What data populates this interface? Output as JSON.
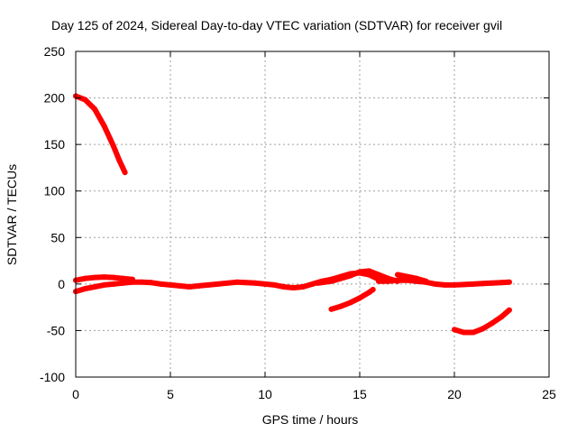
{
  "chart_data": {
    "type": "line",
    "title": "Day 125 of 2024, Sidereal Day-to-day VTEC variation (SDTVAR) for receiver gvil",
    "xlabel": "GPS time / hours",
    "ylabel": "SDTVAR / TECUs",
    "xlim": [
      0,
      25
    ],
    "ylim": [
      -100,
      250
    ],
    "xticks": [
      0,
      5,
      10,
      15,
      20,
      25
    ],
    "yticks": [
      -100,
      -50,
      0,
      50,
      100,
      150,
      200,
      250
    ],
    "grid": true,
    "color": "#ff0000",
    "series": [
      {
        "x": [
          0.0,
          0.5,
          1.0,
          1.5,
          2.0,
          2.3,
          2.6
        ],
        "y": [
          202,
          198,
          188,
          170,
          148,
          133,
          120
        ]
      },
      {
        "x": [
          0.0,
          0.5,
          1.0,
          1.5,
          2.0,
          2.5,
          3.0
        ],
        "y": [
          4,
          6,
          7,
          7.5,
          7,
          6,
          5
        ]
      },
      {
        "x": [
          0.0,
          0.5,
          1.0,
          1.5,
          2.0,
          2.5,
          3.0,
          3.5,
          4.0,
          4.5,
          5.0,
          5.5,
          6.0,
          6.5,
          7.0,
          7.5,
          8.0,
          8.5,
          9.0,
          9.5,
          10.0,
          10.5,
          11.0,
          11.5,
          12.0,
          12.5,
          13.0,
          13.5,
          14.0,
          14.5,
          15.0,
          15.5,
          16.0
        ],
        "y": [
          -8,
          -5,
          -3,
          -1,
          0,
          1,
          2,
          2,
          1.5,
          0,
          -1,
          -2,
          -3,
          -2,
          -1,
          0,
          1,
          2,
          1.5,
          1,
          0,
          -1,
          -3,
          -4,
          -3,
          0,
          3,
          5,
          8,
          11,
          12,
          10,
          5
        ]
      },
      {
        "x": [
          16.0,
          16.5,
          17.0,
          17.5,
          18.0,
          18.5,
          19.0,
          19.5,
          20.0,
          20.5,
          21.0,
          21.5,
          22.0,
          22.5,
          22.9
        ],
        "y": [
          3,
          3,
          4,
          4,
          3,
          2,
          0,
          -1,
          -1,
          -0.5,
          0,
          0.5,
          1,
          1.5,
          2
        ]
      },
      {
        "x": [
          13.5,
          14.0,
          14.5,
          15.0,
          15.5,
          15.7
        ],
        "y": [
          -27,
          -24,
          -20,
          -15,
          -9,
          -6
        ]
      },
      {
        "x": [
          12.8,
          13.5,
          14.0,
          14.5,
          15.0,
          15.5,
          16.0,
          16.5,
          17.0
        ],
        "y": [
          1,
          3,
          6,
          9,
          13,
          14,
          10,
          6,
          3
        ]
      },
      {
        "x": [
          17.0,
          17.5,
          18.0,
          18.5
        ],
        "y": [
          10,
          8,
          6,
          3
        ]
      },
      {
        "x": [
          20.0,
          20.5,
          21.0,
          21.5,
          22.0,
          22.5,
          22.9
        ],
        "y": [
          -49,
          -52,
          -52,
          -48,
          -42,
          -35,
          -28
        ]
      }
    ]
  }
}
